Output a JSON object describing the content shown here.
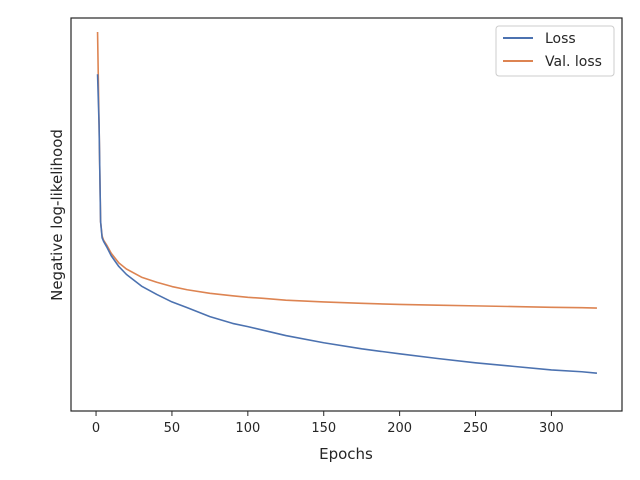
{
  "chart_data": {
    "type": "line",
    "title": "",
    "xlabel": "Epochs",
    "ylabel": "Negative log-likelihood",
    "xlim": [
      -16.5,
      346.5
    ],
    "ylim": [
      0,
      1
    ],
    "y_tick_labels": "none",
    "x_ticks": [
      0,
      50,
      100,
      150,
      200,
      250,
      300
    ],
    "grid": false,
    "legend": "top-right",
    "series": [
      {
        "name": "Loss",
        "color": "#4c72b0",
        "x": [
          1,
          2,
          3,
          4,
          5,
          7,
          10,
          15,
          20,
          30,
          40,
          50,
          60,
          75,
          90,
          100,
          110,
          125,
          150,
          175,
          200,
          225,
          250,
          275,
          300,
          320,
          330
        ],
        "y": [
          0.882,
          0.74,
          0.47,
          0.425,
          0.415,
          0.4,
          0.375,
          0.345,
          0.323,
          0.29,
          0.267,
          0.246,
          0.23,
          0.205,
          0.186,
          0.177,
          0.167,
          0.152,
          0.132,
          0.115,
          0.101,
          0.088,
          0.076,
          0.066,
          0.056,
          0.051,
          0.047
        ]
      },
      {
        "name": "Val. loss",
        "color": "#dd8452",
        "x": [
          1,
          2,
          3,
          4,
          5,
          7,
          10,
          15,
          20,
          30,
          40,
          50,
          60,
          75,
          90,
          100,
          110,
          125,
          150,
          175,
          200,
          225,
          250,
          275,
          300,
          320,
          330
        ],
        "y": [
          1.0,
          0.74,
          0.47,
          0.43,
          0.418,
          0.405,
          0.382,
          0.355,
          0.338,
          0.315,
          0.301,
          0.289,
          0.28,
          0.27,
          0.263,
          0.259,
          0.256,
          0.251,
          0.246,
          0.242,
          0.239,
          0.237,
          0.235,
          0.233,
          0.231,
          0.23,
          0.229
        ]
      }
    ]
  }
}
